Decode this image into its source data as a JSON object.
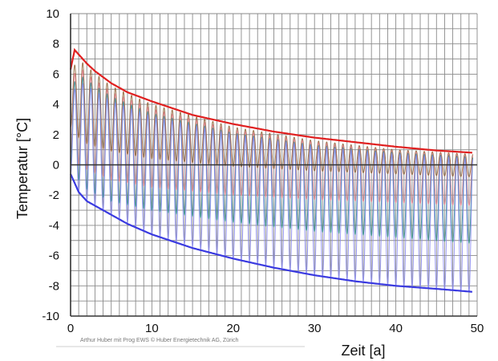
{
  "chart_data": {
    "type": "line",
    "title": "",
    "xlabel": "Zeit  [a]",
    "ylabel": "Temperatur [°C]",
    "xlim": [
      0,
      50
    ],
    "ylim": [
      -10,
      10
    ],
    "x_ticks": [
      0,
      10,
      20,
      30,
      40,
      50
    ],
    "y_ticks": [
      -10,
      -8,
      -6,
      -4,
      -2,
      0,
      2,
      4,
      6,
      8,
      10
    ],
    "grid": true,
    "legend": "none",
    "credit": "Arthur Huber mit Prog EWS    © Huber Energietechnik AG, Zürich",
    "cycles_per_year": 1,
    "colors": {
      "red": "#e02020",
      "blue": "#3a3ae0",
      "brown": "#8b5a2b",
      "pink": "#e07a8a",
      "teal": "#2e8b8b",
      "lightblue": "#8888ee",
      "grid": "#8a8a8a",
      "axis": "#333333"
    },
    "envelopes": [
      {
        "name": "",
        "color_key": "red",
        "x": [
          0,
          0.5,
          1,
          2,
          3,
          5,
          7,
          10,
          15,
          20,
          25,
          30,
          35,
          40,
          45,
          49.5
        ],
        "y": [
          6.3,
          7.6,
          7.3,
          6.7,
          6.2,
          5.4,
          4.8,
          4.2,
          3.3,
          2.7,
          2.2,
          1.8,
          1.5,
          1.2,
          0.95,
          0.8
        ]
      },
      {
        "name": "",
        "color_key": "blue",
        "x": [
          0,
          0.5,
          1,
          2,
          3,
          5,
          7,
          10,
          15,
          20,
          25,
          30,
          35,
          40,
          45,
          49.5
        ],
        "y": [
          -0.6,
          -1.2,
          -1.8,
          -2.4,
          -2.7,
          -3.3,
          -3.9,
          -4.6,
          -5.5,
          -6.2,
          -6.8,
          -7.3,
          -7.7,
          -8.0,
          -8.2,
          -8.4
        ]
      }
    ],
    "bands": [
      {
        "name": "",
        "color_key": "brown",
        "x": [
          0,
          1,
          2,
          5,
          10,
          20,
          30,
          40,
          49.5
        ],
        "max": [
          6.2,
          7.0,
          6.5,
          5.2,
          4.0,
          2.5,
          1.6,
          1.0,
          0.7
        ],
        "min": [
          2.5,
          1.8,
          1.4,
          0.9,
          0.4,
          -0.1,
          -0.4,
          -0.6,
          -0.8
        ]
      },
      {
        "name": "",
        "color_key": "pink",
        "x": [
          0,
          1,
          2,
          5,
          10,
          20,
          30,
          40,
          49.5
        ],
        "max": [
          5.6,
          6.5,
          6.0,
          4.8,
          3.7,
          2.3,
          1.5,
          0.9,
          0.6
        ],
        "min": [
          0.8,
          0.0,
          -0.3,
          -1.0,
          -1.5,
          -2.0,
          -2.3,
          -2.5,
          -2.7
        ]
      },
      {
        "name": "",
        "color_key": "teal",
        "x": [
          0,
          1,
          2,
          5,
          10,
          20,
          30,
          40,
          49.5
        ],
        "max": [
          5.0,
          6.0,
          5.6,
          4.5,
          3.4,
          2.1,
          1.3,
          0.8,
          0.5
        ],
        "min": [
          0.0,
          -1.0,
          -1.6,
          -2.4,
          -3.0,
          -3.8,
          -4.4,
          -4.8,
          -5.2
        ]
      },
      {
        "name": "",
        "color_key": "lightblue",
        "x": [
          0,
          1,
          2,
          5,
          10,
          20,
          30,
          40,
          49.5
        ],
        "max": [
          4.5,
          5.5,
          5.2,
          4.2,
          3.2,
          2.0,
          1.2,
          0.7,
          0.4
        ],
        "min": [
          -0.6,
          -1.8,
          -2.4,
          -3.3,
          -4.6,
          -6.2,
          -7.3,
          -8.0,
          -8.4
        ]
      }
    ]
  }
}
